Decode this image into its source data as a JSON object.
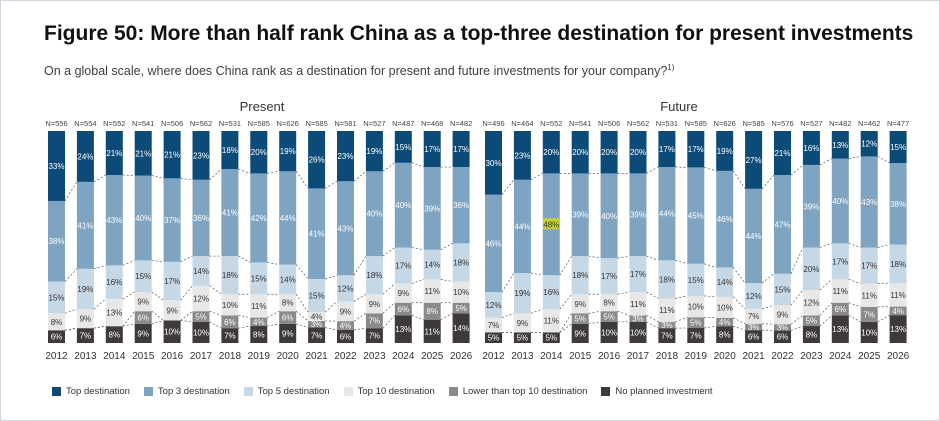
{
  "header": {
    "title": "Figure 50: More than half rank China as a top-three destination for present investments",
    "subtitle": "On a global scale, where does China rank as a destination for present and future investments for your company?",
    "footnote_mark": "1)"
  },
  "chart_data": [
    {
      "type": "bar",
      "stacked": "100%",
      "title": "Present",
      "categories": [
        "2012",
        "2013",
        "2014",
        "2015",
        "2016",
        "2017",
        "2018",
        "2019",
        "2020",
        "2021",
        "2022",
        "2023",
        "2024",
        "2025",
        "2026"
      ],
      "n_labels": [
        "N=556",
        "N=554",
        "N=552",
        "N=541",
        "N=506",
        "N=562",
        "N=531",
        "N=585",
        "N=626",
        "N=585",
        "N=581",
        "N=527",
        "N=487",
        "N=468",
        "N=482"
      ],
      "series": [
        {
          "name": "No planned investment",
          "values": [
            6,
            7,
            8,
            9,
            10,
            10,
            7,
            8,
            9,
            7,
            6,
            7,
            13,
            11,
            14
          ]
        },
        {
          "name": "Lower than top 10 destination",
          "values": [
            null,
            null,
            null,
            6,
            null,
            5,
            6,
            4,
            6,
            3,
            4,
            7,
            6,
            8,
            5
          ]
        },
        {
          "name": "Top 10 destination",
          "values": [
            8,
            9,
            13,
            9,
            9,
            12,
            10,
            11,
            8,
            4,
            9,
            9,
            9,
            11,
            10
          ]
        },
        {
          "name": "Top 5 destination",
          "values": [
            15,
            19,
            16,
            15,
            17,
            14,
            18,
            15,
            14,
            15,
            12,
            18,
            17,
            14,
            18
          ]
        },
        {
          "name": "Top 3 destination",
          "values": [
            38,
            41,
            43,
            40,
            37,
            36,
            41,
            42,
            44,
            41,
            43,
            40,
            40,
            39,
            36
          ]
        },
        {
          "name": "Top destination",
          "values": [
            33,
            24,
            21,
            21,
            21,
            23,
            18,
            20,
            19,
            26,
            23,
            19,
            15,
            17,
            17
          ]
        }
      ],
      "ylim": [
        0,
        100
      ]
    },
    {
      "type": "bar",
      "stacked": "100%",
      "title": "Future",
      "categories": [
        "2012",
        "2013",
        "2014",
        "2015",
        "2016",
        "2017",
        "2018",
        "2019",
        "2020",
        "2021",
        "2022",
        "2023",
        "2024",
        "2025",
        "2026"
      ],
      "n_labels": [
        "N=496",
        "N=464",
        "N=552",
        "N=541",
        "N=506",
        "N=562",
        "N=531",
        "N=585",
        "N=626",
        "N=585",
        "N=576",
        "N=527",
        "N=482",
        "N=462",
        "N=477"
      ],
      "series": [
        {
          "name": "No planned investment",
          "values": [
            5,
            5,
            5,
            9,
            10,
            10,
            7,
            7,
            8,
            6,
            6,
            8,
            13,
            10,
            13
          ]
        },
        {
          "name": "Lower than top 10 destination",
          "values": [
            null,
            null,
            null,
            5,
            5,
            3,
            3,
            5,
            4,
            3,
            3,
            5,
            6,
            7,
            4
          ]
        },
        {
          "name": "Top 10 destination",
          "values": [
            7,
            9,
            11,
            9,
            8,
            11,
            11,
            10,
            10,
            7,
            9,
            12,
            11,
            11,
            11
          ]
        },
        {
          "name": "Top 5 destination",
          "values": [
            12,
            19,
            16,
            18,
            17,
            17,
            18,
            15,
            14,
            12,
            15,
            20,
            17,
            17,
            18
          ]
        },
        {
          "name": "Top 3 destination",
          "values": [
            46,
            44,
            48,
            39,
            40,
            39,
            44,
            45,
            46,
            44,
            47,
            39,
            40,
            43,
            38
          ]
        },
        {
          "name": "Top destination",
          "values": [
            30,
            23,
            20,
            20,
            20,
            20,
            17,
            17,
            19,
            27,
            21,
            16,
            13,
            12,
            15
          ]
        }
      ],
      "ylim": [
        0,
        100
      ]
    }
  ],
  "colors": {
    "Top destination": "#0c4a78",
    "Top 3 destination": "#7ea4c2",
    "Top 5 destination": "#c6d7e5",
    "Top 10 destination": "#e7e7e7",
    "Lower than top 10 destination": "#8a8a8a",
    "No planned investment": "#3f3a3a",
    "highlight": "#c5d32f"
  },
  "legend": [
    {
      "label": "Top destination",
      "color": "#0c4a78"
    },
    {
      "label": "Top 3 destination",
      "color": "#7ea4c2"
    },
    {
      "label": "Top 5 destination",
      "color": "#c6d7e5"
    },
    {
      "label": "Top 10 destination",
      "color": "#e7e7e7"
    },
    {
      "label": "Lower than top 10 destination",
      "color": "#8a8a8a"
    },
    {
      "label": "No planned investment",
      "color": "#3f3a3a"
    }
  ]
}
